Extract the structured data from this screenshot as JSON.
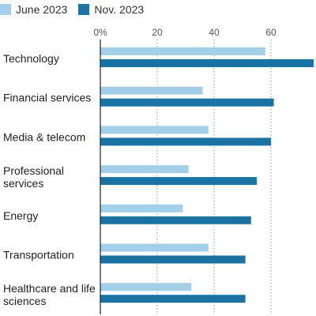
{
  "chart_data": {
    "type": "bar",
    "orientation": "horizontal",
    "title": "",
    "xlabel": "",
    "ylabel": "",
    "tick_unit_suffix": "%",
    "x_ticks": [
      0,
      20,
      40,
      60
    ],
    "xlim": [
      0,
      75
    ],
    "grid": true,
    "legend_position": "top-left",
    "categories": [
      "Technology",
      "Financial services",
      "Media & telecom",
      "Professional services",
      "Energy",
      "Transportation",
      "Healthcare and life sciences"
    ],
    "series": [
      {
        "name": "June 2023",
        "color": "#a3cfe9",
        "values": [
          58,
          36,
          38,
          31,
          29,
          38,
          32
        ]
      },
      {
        "name": "Nov. 2023",
        "color": "#1b73a3",
        "values": [
          75,
          61,
          60,
          55,
          53,
          51,
          51
        ]
      }
    ]
  },
  "category_label_lines": [
    [
      "Technology"
    ],
    [
      "Financial services"
    ],
    [
      "Media & telecom"
    ],
    [
      "Professional",
      "services"
    ],
    [
      "Energy"
    ],
    [
      "Transportation"
    ],
    [
      "Healthcare and life",
      "sciences"
    ]
  ]
}
